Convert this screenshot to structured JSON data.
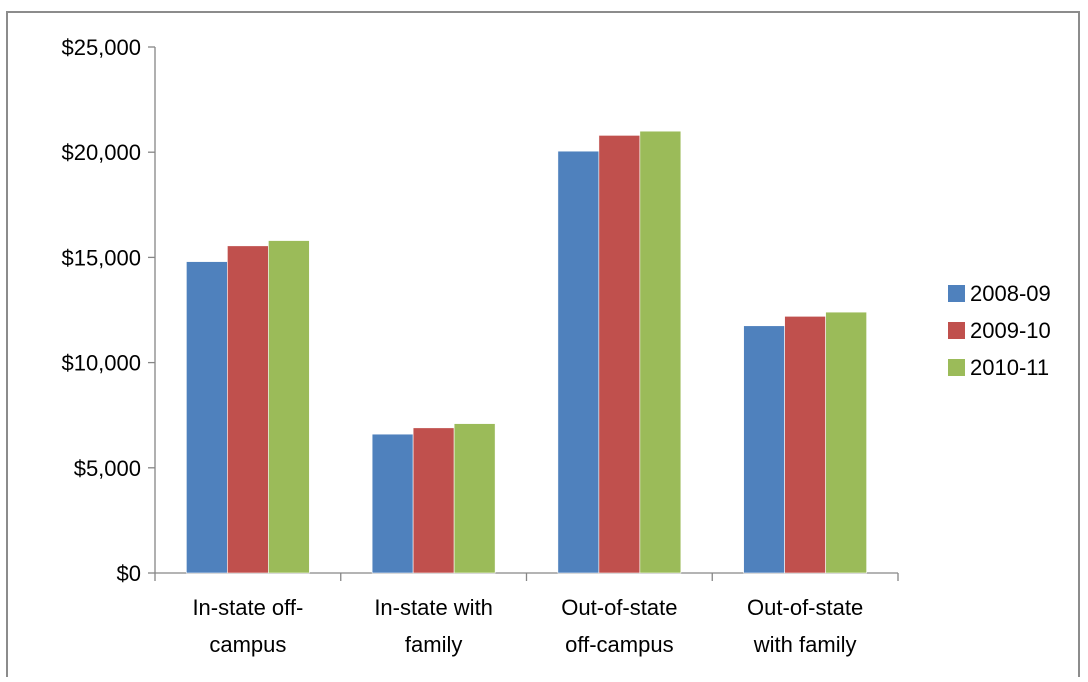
{
  "chart_data": {
    "type": "bar",
    "title": "",
    "xlabel": "",
    "ylabel": "",
    "categories": [
      [
        "In-state off-",
        "campus"
      ],
      [
        "In-state with",
        "family"
      ],
      [
        "Out-of-state",
        "off-campus"
      ],
      [
        "Out-of-state",
        "with family"
      ]
    ],
    "series": [
      {
        "name": "2008-09",
        "color": "#4f81bd",
        "values": [
          14800,
          6600,
          20050,
          11750
        ]
      },
      {
        "name": "2009-10",
        "color": "#c0504d",
        "values": [
          15550,
          6900,
          20800,
          12200
        ]
      },
      {
        "name": "2010-11",
        "color": "#9bbb59",
        "values": [
          15800,
          7100,
          21000,
          12400
        ]
      }
    ],
    "ylim": [
      0,
      25000
    ],
    "yticks": [
      0,
      5000,
      10000,
      15000,
      20000,
      25000
    ],
    "ytick_labels": [
      "$0",
      "$5,000",
      "$10,000",
      "$15,000",
      "$20,000",
      "$25,000"
    ],
    "grid": false,
    "legend_position": "right"
  }
}
